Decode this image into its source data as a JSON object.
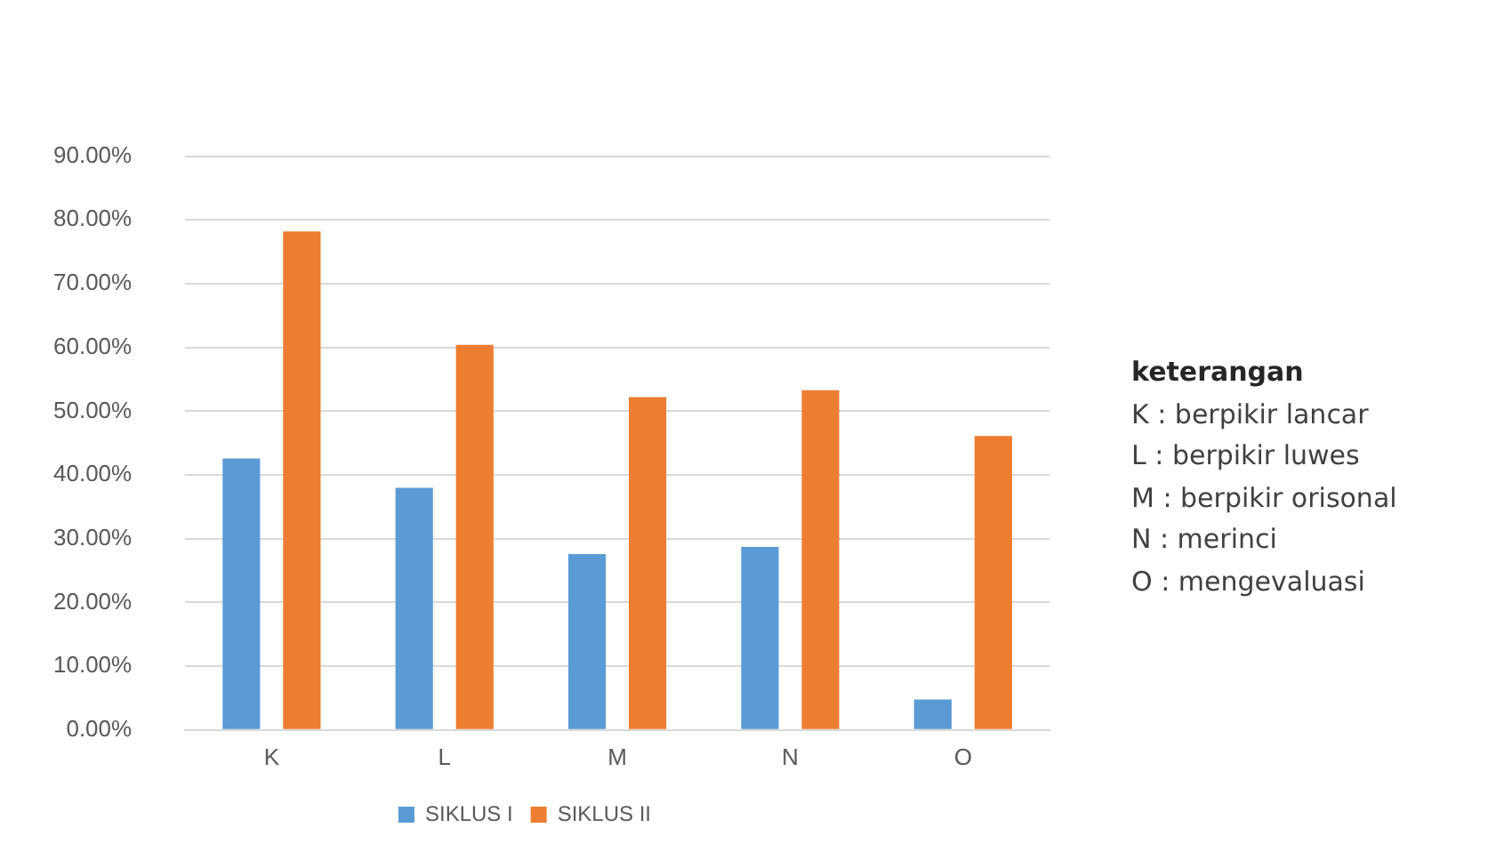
{
  "chart_data": {
    "type": "bar",
    "categories": [
      "K",
      "L",
      "M",
      "N",
      "O"
    ],
    "series": [
      {
        "name": "SIKLUS I",
        "color": "#5b9bd5",
        "values": [
          42.6,
          38.0,
          27.6,
          28.7,
          4.8
        ]
      },
      {
        "name": "SIKLUS II",
        "color": "#ed7d31",
        "values": [
          78.2,
          60.4,
          52.2,
          53.3,
          46.1
        ]
      }
    ],
    "ylim": [
      0,
      90
    ],
    "yticks": [
      {
        "value": 0,
        "label": "0.00%"
      },
      {
        "value": 10,
        "label": "10.00%"
      },
      {
        "value": 20,
        "label": "20.00%"
      },
      {
        "value": 30,
        "label": "30.00%"
      },
      {
        "value": 40,
        "label": "40.00%"
      },
      {
        "value": 50,
        "label": "50.00%"
      },
      {
        "value": 60,
        "label": "60.00%"
      },
      {
        "value": 70,
        "label": "70.00%"
      },
      {
        "value": 80,
        "label": "80.00%"
      },
      {
        "value": 90,
        "label": "90.00%"
      }
    ],
    "grid": "y",
    "legend": "bottom",
    "annotations": [
      "keterangan",
      "K : berpikir lancar",
      "L : berpikir luwes",
      "M : berpikir orisonal",
      "N : merinci",
      "O : mengevaluasi"
    ]
  }
}
